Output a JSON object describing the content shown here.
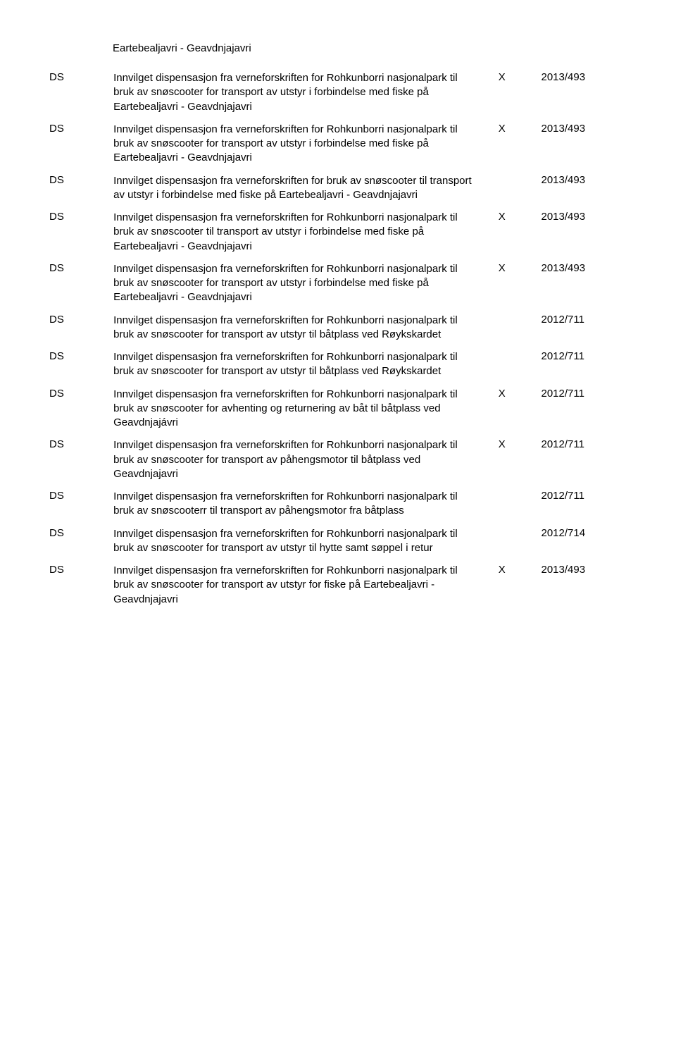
{
  "top_line": "Eartebealjavri - Geavdnjajavri",
  "rows": [
    {
      "type": "DS",
      "desc": "Innvilget dispensasjon fra verneforskriften for Rohkunborri nasjonalpark til bruk av snøscooter for transport av utstyr i forbindelse med fiske på Eartebealjavri - Geavdnjajavri",
      "mark": "X",
      "ref": "2013/493"
    },
    {
      "type": "DS",
      "desc": "Innvilget dispensasjon fra verneforskriften for Rohkunborri nasjonalpark til bruk av snøscooter for transport av utstyr i forbindelse med fiske på Eartebealjavri - Geavdnjajavri",
      "mark": "X",
      "ref": "2013/493"
    },
    {
      "type": "DS",
      "desc": "Innvilget dispensasjon fra verneforskriften for bruk av snøscooter til transport av utstyr i forbindelse med fiske på Eartebealjavri - Geavdnjajavri",
      "mark": "",
      "ref": "2013/493"
    },
    {
      "type": "DS",
      "desc": "Innvilget dispensasjon fra verneforskriften for Rohkunborri nasjonalpark til bruk av snøscooter til transport av utstyr i forbindelse med fiske på Eartebealjavri - Geavdnjajavri",
      "mark": "X",
      "ref": "2013/493"
    },
    {
      "type": "DS",
      "desc": "Innvilget dispensasjon fra verneforskriften for Rohkunborri nasjonalpark til bruk av snøscooter for transport av utstyr i forbindelse med fiske på Eartebealjavri - Geavdnjajavri",
      "mark": "X",
      "ref": "2013/493"
    },
    {
      "type": "DS",
      "desc": "Innvilget dispensasjon fra verneforskriften for Rohkunborri nasjonalpark til bruk av snøscooter for transport av utstyr til båtplass ved Røykskardet",
      "mark": "",
      "ref": "2012/711"
    },
    {
      "type": "DS",
      "desc": "Innvilget dispensasjon fra verneforskriften for Rohkunborri nasjonalpark til bruk av snøscooter for transport av utstyr til båtplass ved Røykskardet",
      "mark": "",
      "ref": "2012/711"
    },
    {
      "type": "DS",
      "desc": "Innvilget dispensasjon fra verneforskriften for Rohkunborri nasjonalpark til bruk av snøscooter for avhenting og returnering av båt til båtplass ved Geavdnjajávri",
      "mark": "X",
      "ref": "2012/711"
    },
    {
      "type": "DS",
      "desc": "Innvilget dispensasjon fra verneforskriften for Rohkunborri nasjonalpark til bruk av snøscooter for transport av påhengsmotor til båtplass ved Geavdnjajavri",
      "mark": "X",
      "ref": "2012/711"
    },
    {
      "type": "DS",
      "desc": "Innvilget dispensasjon fra verneforskriften for Rohkunborri nasjonalpark til bruk av snøscooterr til transport av påhengsmotor fra båtplass",
      "mark": "",
      "ref": "2012/711"
    },
    {
      "type": "DS",
      "desc": "Innvilget dispensasjon fra verneforskriften for Rohkunborri nasjonalpark til bruk av snøscooter for transport av utstyr til hytte samt søppel i retur",
      "mark": "",
      "ref": "2012/714"
    },
    {
      "type": "DS",
      "desc": "Innvilget dispensasjon fra verneforskriften for Rohkunborri nasjonalpark til bruk av snøscooter for transport av utstyr for fiske på Eartebealjavri - Geavdnjajavri",
      "mark": "X",
      "ref": "2013/493"
    }
  ]
}
